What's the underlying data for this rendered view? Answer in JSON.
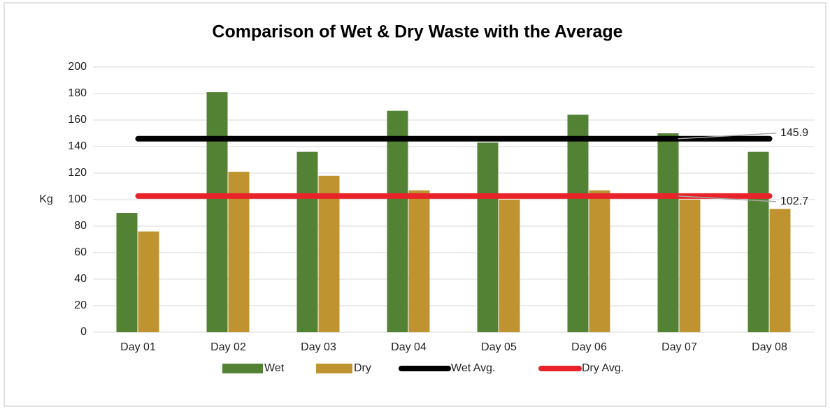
{
  "chart_data": {
    "type": "bar",
    "title": "Comparison of Wet & Dry Waste with the Average",
    "y_label": "Kg",
    "categories": [
      "Day 01",
      "Day 02",
      "Day 03",
      "Day 04",
      "Day 05",
      "Day 06",
      "Day 07",
      "Day 08"
    ],
    "series": [
      {
        "name": "Wet",
        "color": "#548235",
        "values": [
          90,
          181,
          136,
          167,
          143,
          164,
          150,
          136
        ]
      },
      {
        "name": "Dry",
        "color": "#bf9430",
        "values": [
          76,
          121,
          118,
          107,
          100,
          107,
          100,
          93
        ]
      },
      {
        "name": "Wet Avg.",
        "type": "line",
        "color": "#000000",
        "values": [
          145.9,
          145.9,
          145.9,
          145.9,
          145.9,
          145.9,
          145.9,
          145.9
        ]
      },
      {
        "name": "Dry Avg.",
        "type": "line",
        "color": "#e8242a",
        "values": [
          102.7,
          102.7,
          102.7,
          102.7,
          102.7,
          102.7,
          102.7,
          102.7
        ]
      }
    ],
    "ylim": [
      0,
      200
    ],
    "yticks": [
      0,
      20,
      40,
      60,
      80,
      100,
      120,
      140,
      160,
      180,
      200
    ],
    "grid": true,
    "legend": "bottom"
  }
}
